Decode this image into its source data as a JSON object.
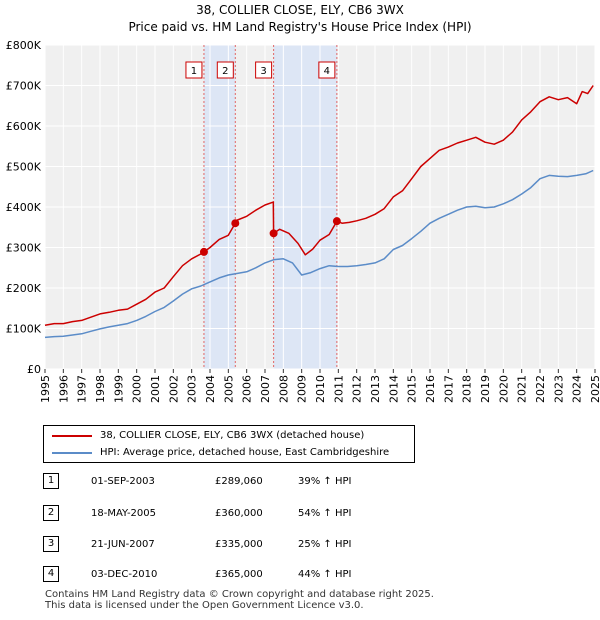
{
  "chart_data": {
    "type": "line",
    "title": "38, COLLIER CLOSE, ELY, CB6 3WX",
    "subtitle": "Price paid vs. HM Land Registry's House Price Index (HPI)",
    "xlabel": "",
    "ylabel": "",
    "xlim": [
      1995,
      2025
    ],
    "ylim": [
      0,
      800000
    ],
    "x_ticks": [
      "1995",
      "1996",
      "1997",
      "1998",
      "1999",
      "2000",
      "2001",
      "2002",
      "2003",
      "2004",
      "2005",
      "2006",
      "2007",
      "2008",
      "2009",
      "2010",
      "2011",
      "2012",
      "2013",
      "2014",
      "2015",
      "2016",
      "2017",
      "2018",
      "2019",
      "2020",
      "2021",
      "2022",
      "2023",
      "2024",
      "2025"
    ],
    "y_ticks": [
      {
        "value": 0,
        "label": "£0"
      },
      {
        "value": 100000,
        "label": "£100K"
      },
      {
        "value": 200000,
        "label": "£200K"
      },
      {
        "value": 300000,
        "label": "£300K"
      },
      {
        "value": 400000,
        "label": "£400K"
      },
      {
        "value": 500000,
        "label": "£500K"
      },
      {
        "value": 600000,
        "label": "£600K"
      },
      {
        "value": 700000,
        "label": "£700K"
      },
      {
        "value": 800000,
        "label": "£800K"
      }
    ],
    "grid": true,
    "series": [
      {
        "name": "38, COLLIER CLOSE, ELY, CB6 3WX (detached house)",
        "color": "#cc0000",
        "x": [
          1995.0,
          1995.5,
          1996.0,
          1996.5,
          1997.0,
          1997.5,
          1998.0,
          1998.5,
          1999.0,
          1999.5,
          2000.0,
          2000.5,
          2001.0,
          2001.5,
          2002.0,
          2002.5,
          2003.0,
          2003.5,
          2003.67,
          2004.0,
          2004.5,
          2005.0,
          2005.38,
          2005.5,
          2006.0,
          2006.5,
          2007.0,
          2007.45,
          2007.47,
          2007.8,
          2008.3,
          2008.8,
          2009.2,
          2009.6,
          2010.0,
          2010.5,
          2010.92,
          2011.2,
          2011.6,
          2012.0,
          2012.5,
          2013.0,
          2013.5,
          2014.0,
          2014.5,
          2015.0,
          2015.5,
          2016.0,
          2016.5,
          2017.0,
          2017.5,
          2018.0,
          2018.5,
          2019.0,
          2019.5,
          2020.0,
          2020.5,
          2021.0,
          2021.5,
          2022.0,
          2022.5,
          2023.0,
          2023.5,
          2024.0,
          2024.3,
          2024.6,
          2024.9
        ],
        "values": [
          108000,
          112000,
          112000,
          117000,
          120000,
          128000,
          136000,
          140000,
          145000,
          148000,
          160000,
          172000,
          190000,
          200000,
          228000,
          255000,
          272000,
          284000,
          289060,
          300000,
          320000,
          330000,
          360000,
          368000,
          377000,
          392000,
          405000,
          412000,
          335000,
          345000,
          335000,
          310000,
          282000,
          296000,
          318000,
          332000,
          365000,
          360000,
          362000,
          366000,
          372000,
          382000,
          396000,
          425000,
          440000,
          470000,
          500000,
          520000,
          540000,
          548000,
          558000,
          565000,
          572000,
          560000,
          555000,
          565000,
          585000,
          615000,
          635000,
          660000,
          672000,
          665000,
          670000,
          655000,
          685000,
          680000,
          700000
        ]
      },
      {
        "name": "HPI: Average price, detached house, East Cambridgeshire",
        "color": "#5b8cc8",
        "x": [
          1995.0,
          1995.5,
          1996.0,
          1996.5,
          1997.0,
          1997.5,
          1998.0,
          1998.5,
          1999.0,
          1999.5,
          2000.0,
          2000.5,
          2001.0,
          2001.5,
          2002.0,
          2002.5,
          2003.0,
          2003.5,
          2004.0,
          2004.5,
          2005.0,
          2005.5,
          2006.0,
          2006.5,
          2007.0,
          2007.5,
          2008.0,
          2008.5,
          2009.0,
          2009.5,
          2010.0,
          2010.5,
          2011.0,
          2011.5,
          2012.0,
          2012.5,
          2013.0,
          2013.5,
          2014.0,
          2014.5,
          2015.0,
          2015.5,
          2016.0,
          2016.5,
          2017.0,
          2017.5,
          2018.0,
          2018.5,
          2019.0,
          2019.5,
          2020.0,
          2020.5,
          2021.0,
          2021.5,
          2022.0,
          2022.5,
          2023.0,
          2023.5,
          2024.0,
          2024.5,
          2024.9
        ],
        "values": [
          78000,
          80000,
          81000,
          84000,
          87000,
          93000,
          99000,
          104000,
          108000,
          112000,
          120000,
          130000,
          142000,
          152000,
          168000,
          185000,
          198000,
          205000,
          215000,
          225000,
          232000,
          236000,
          240000,
          250000,
          262000,
          270000,
          272000,
          262000,
          232000,
          238000,
          248000,
          255000,
          253000,
          253000,
          255000,
          258000,
          262000,
          272000,
          295000,
          305000,
          322000,
          340000,
          360000,
          372000,
          382000,
          392000,
          400000,
          402000,
          398000,
          400000,
          408000,
          418000,
          432000,
          448000,
          470000,
          478000,
          476000,
          475000,
          478000,
          482000,
          490000
        ]
      }
    ],
    "events": [
      {
        "label": "1",
        "x": 2003.67,
        "value": 289060
      },
      {
        "label": "2",
        "x": 2005.38,
        "value": 360000
      },
      {
        "label": "3",
        "x": 2007.47,
        "value": 335000
      },
      {
        "label": "4",
        "x": 2010.92,
        "value": 365000
      }
    ],
    "shaded_periods": [
      [
        2003.67,
        2005.38
      ],
      [
        2007.47,
        2010.92
      ]
    ]
  },
  "legend": {
    "property_label": "38, COLLIER CLOSE, ELY, CB6 3WX (detached house)",
    "hpi_label": "HPI: Average price, detached house, East Cambridgeshire",
    "property_color": "#cc0000",
    "hpi_color": "#5b8cc8"
  },
  "transactions": [
    {
      "num": "1",
      "date": "01-SEP-2003",
      "price": "£289,060",
      "hpi": "39% ↑ HPI"
    },
    {
      "num": "2",
      "date": "18-MAY-2005",
      "price": "£360,000",
      "hpi": "54% ↑ HPI"
    },
    {
      "num": "3",
      "date": "21-JUN-2007",
      "price": "£335,000",
      "hpi": "25% ↑ HPI"
    },
    {
      "num": "4",
      "date": "03-DEC-2010",
      "price": "£365,000",
      "hpi": "44% ↑ HPI"
    }
  ],
  "footer": {
    "line1": "Contains HM Land Registry data © Crown copyright and database right 2025.",
    "line2": "This data is licensed under the Open Government Licence v3.0."
  }
}
